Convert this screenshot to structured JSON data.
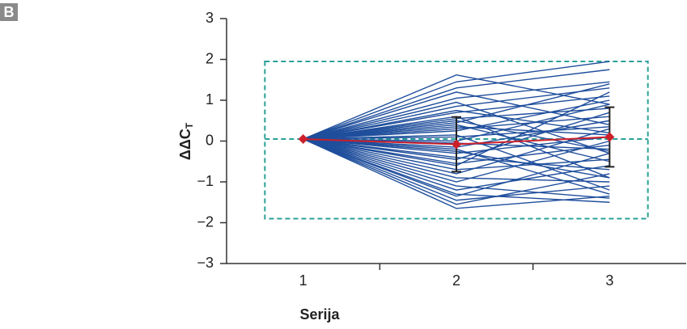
{
  "panel_label": "B",
  "chart_data": {
    "type": "line",
    "ylabel": "ΔΔC",
    "ylabel_sub": "T",
    "xlabel": "Serija",
    "x": [
      1,
      2,
      3
    ],
    "xlim": [
      0.5,
      3.5
    ],
    "xticks": [
      1,
      2,
      3
    ],
    "xtick_marks": [
      1.5,
      2.5
    ],
    "ylim": [
      -3,
      3
    ],
    "yticks": [
      {
        "value": -3,
        "label": "−3"
      },
      {
        "value": -2,
        "label": "−2"
      },
      {
        "value": -1,
        "label": "−1"
      },
      0,
      1,
      2,
      3
    ],
    "line_color": "#1f4e9c",
    "series": [
      {
        "values": [
          0.05,
          1.62,
          0.9
        ]
      },
      {
        "values": [
          0.05,
          1.45,
          1.95
        ]
      },
      {
        "values": [
          0.05,
          1.3,
          1.75
        ]
      },
      {
        "values": [
          0.05,
          1.2,
          0.4
        ]
      },
      {
        "values": [
          0.05,
          1.05,
          1.45
        ]
      },
      {
        "values": [
          0.05,
          0.95,
          -0.3
        ]
      },
      {
        "values": [
          0.05,
          0.85,
          1.3
        ]
      },
      {
        "values": [
          0.05,
          0.75,
          0.2
        ]
      },
      {
        "values": [
          0.05,
          0.7,
          1.1
        ]
      },
      {
        "values": [
          0.05,
          0.6,
          -0.9
        ]
      },
      {
        "values": [
          0.05,
          0.55,
          0.8
        ]
      },
      {
        "values": [
          0.05,
          0.45,
          1.4
        ]
      },
      {
        "values": [
          0.05,
          0.4,
          -0.5
        ]
      },
      {
        "values": [
          0.05,
          0.3,
          0.6
        ]
      },
      {
        "values": [
          0.05,
          0.25,
          1.0
        ]
      },
      {
        "values": [
          0.05,
          0.15,
          -1.2
        ]
      },
      {
        "values": [
          0.05,
          0.1,
          0.35
        ]
      },
      {
        "values": [
          0.05,
          0.0,
          0.9
        ]
      },
      {
        "values": [
          0.05,
          -0.05,
          -0.2
        ]
      },
      {
        "values": [
          0.05,
          -0.15,
          0.5
        ]
      },
      {
        "values": [
          0.05,
          -0.2,
          -1.3
        ]
      },
      {
        "values": [
          0.05,
          -0.3,
          0.1
        ]
      },
      {
        "values": [
          0.05,
          -0.4,
          -0.7
        ]
      },
      {
        "values": [
          0.05,
          -0.45,
          0.7
        ]
      },
      {
        "values": [
          0.05,
          -0.55,
          -0.1
        ]
      },
      {
        "values": [
          0.05,
          -0.6,
          1.2
        ]
      },
      {
        "values": [
          0.05,
          -0.7,
          -0.45
        ]
      },
      {
        "values": [
          0.05,
          -0.8,
          0.3
        ]
      },
      {
        "values": [
          0.05,
          -0.9,
          -1.0
        ]
      },
      {
        "values": [
          0.05,
          -1.0,
          0.0
        ]
      },
      {
        "values": [
          0.05,
          -1.1,
          -1.4
        ]
      },
      {
        "values": [
          0.05,
          -1.2,
          -0.6
        ]
      },
      {
        "values": [
          0.05,
          -1.3,
          -1.5
        ]
      },
      {
        "values": [
          0.05,
          -1.35,
          -0.3
        ]
      },
      {
        "values": [
          0.05,
          -1.45,
          -1.1
        ]
      },
      {
        "values": [
          0.05,
          -1.55,
          -0.8
        ]
      },
      {
        "values": [
          0.05,
          -1.65,
          -1.35
        ]
      },
      {
        "values": [
          0.05,
          0.5,
          -0.25
        ]
      },
      {
        "values": [
          0.05,
          -0.25,
          -0.9
        ]
      },
      {
        "values": [
          0.05,
          0.35,
          0.15
        ]
      }
    ],
    "mean": {
      "color": "#cc1f2a",
      "values": [
        0.05,
        -0.08,
        0.1
      ],
      "errors": [
        null,
        0.67,
        0.73
      ]
    },
    "limit_box": {
      "color": "#2aa198",
      "xlim": [
        0.75,
        3.25
      ],
      "ylim": [
        -1.9,
        1.95
      ],
      "reference": 0.05
    }
  }
}
